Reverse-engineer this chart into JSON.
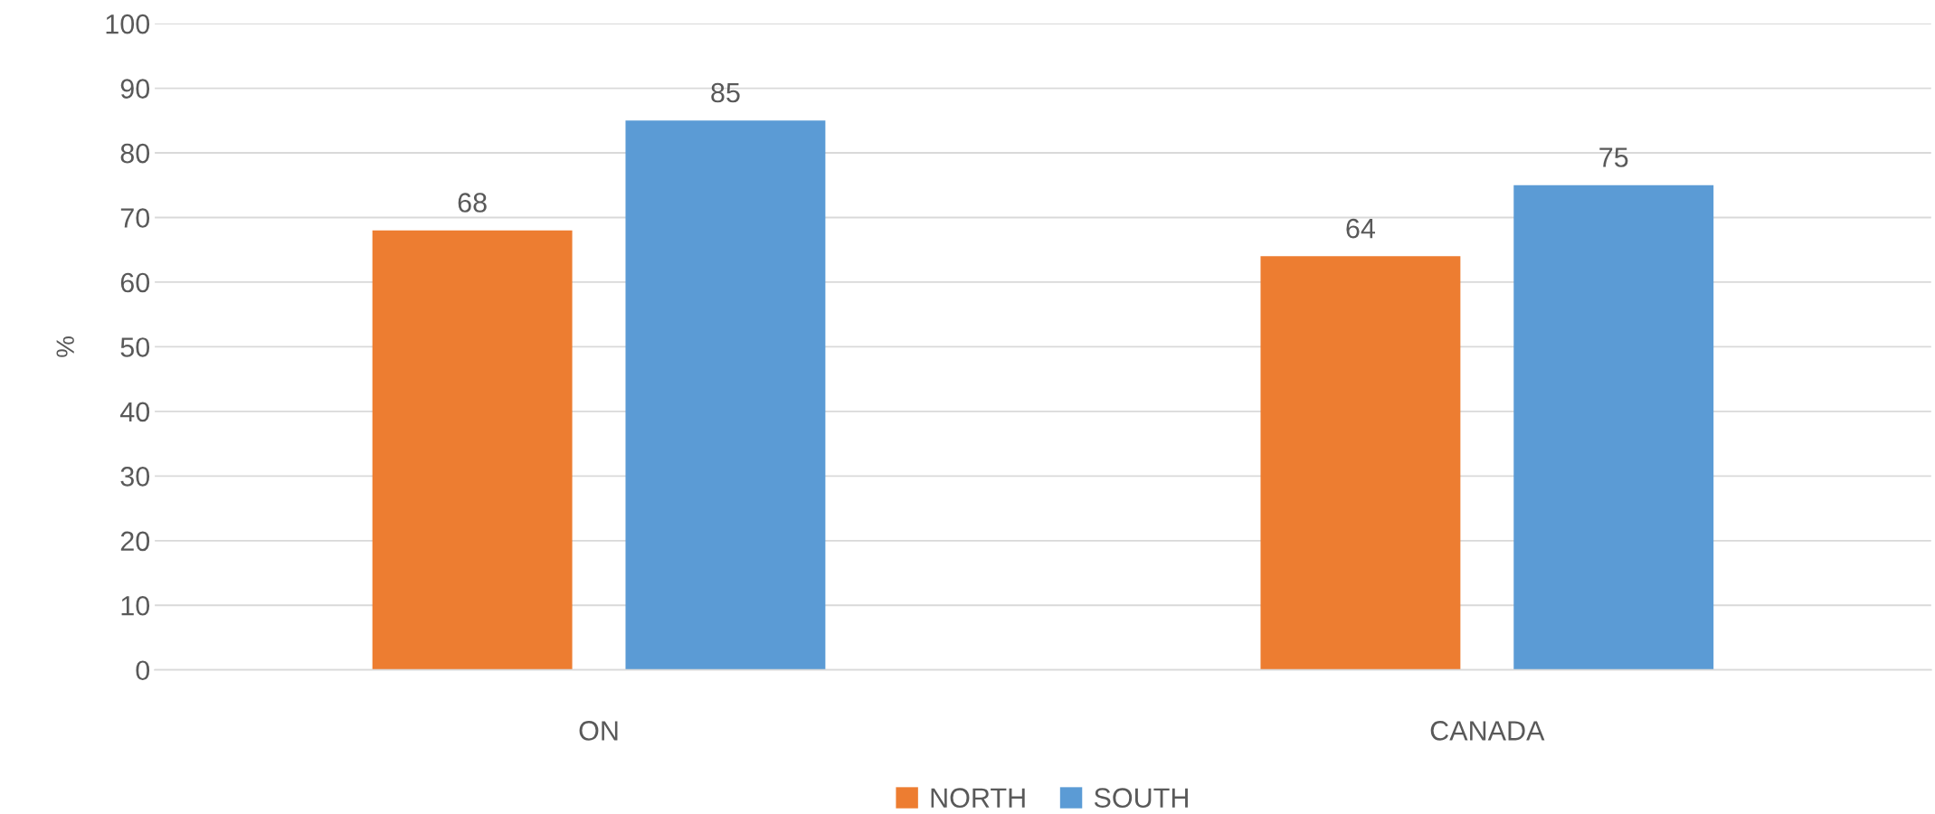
{
  "chart_data": {
    "type": "bar",
    "ylabel": "%",
    "categories": [
      "ON",
      "CANADA"
    ],
    "series": [
      {
        "name": "NORTH",
        "color": "#ed7d31",
        "values": [
          68,
          64
        ]
      },
      {
        "name": "SOUTH",
        "color": "#5b9bd5",
        "values": [
          85,
          75
        ]
      }
    ],
    "ylim": [
      0,
      100
    ],
    "yticks": [
      0,
      10,
      20,
      30,
      40,
      50,
      60,
      70,
      80,
      90,
      100
    ],
    "grid": "y",
    "legend": "bottom",
    "data_labels": true
  }
}
